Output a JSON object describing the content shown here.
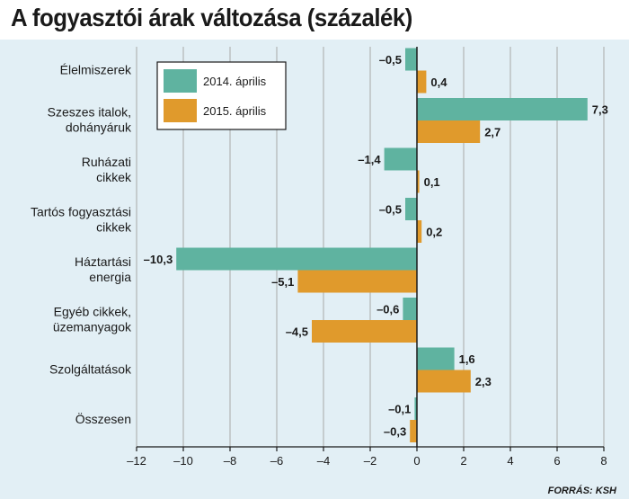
{
  "title": "A fogyasztói árak változása (százalék)",
  "source": "FORRÁS: KSH",
  "colors": {
    "series_2014": "#5fb3a0",
    "series_2015": "#e09a2c",
    "background": "#e2eff5",
    "axis": "#1a1a1a"
  },
  "chart_data": {
    "type": "bar",
    "orientation": "horizontal",
    "categories": [
      [
        "Élelmiszerek"
      ],
      [
        "Szeszes italok,",
        "dohányáruk"
      ],
      [
        "Ruházati",
        "cikkek"
      ],
      [
        "Tartós fogyasztási",
        "cikkek"
      ],
      [
        "Háztartási",
        "energia"
      ],
      [
        "Egyéb cikkek,",
        "üzemanyagok"
      ],
      [
        "Szolgáltatások"
      ],
      [
        "Összesen"
      ]
    ],
    "series": [
      {
        "name": "2014. április",
        "color": "#5fb3a0",
        "values": [
          -0.5,
          7.3,
          -1.4,
          -0.5,
          -10.3,
          -0.6,
          1.6,
          -0.1
        ],
        "labels": [
          "–0,5",
          "7,3",
          "–1,4",
          "–0,5",
          "–10,3",
          "–0,6",
          "1,6",
          "–0,1"
        ]
      },
      {
        "name": "2015. április",
        "color": "#e09a2c",
        "values": [
          0.4,
          2.7,
          0.1,
          0.2,
          -5.1,
          -4.5,
          2.3,
          -0.3
        ],
        "labels": [
          "0,4",
          "2,7",
          "0,1",
          "0,2",
          "–5,1",
          "–4,5",
          "2,3",
          "–0,3"
        ]
      }
    ],
    "xlim": [
      -12,
      8
    ],
    "xticks": [
      -12,
      -10,
      -8,
      -6,
      -4,
      -2,
      0,
      2,
      4,
      6,
      8
    ],
    "xtick_labels": [
      "–12",
      "–10",
      "–8",
      "–6",
      "–4",
      "–2",
      "0",
      "2",
      "4",
      "6",
      "8"
    ],
    "grid": "vertical",
    "legend_position": "top-left"
  }
}
